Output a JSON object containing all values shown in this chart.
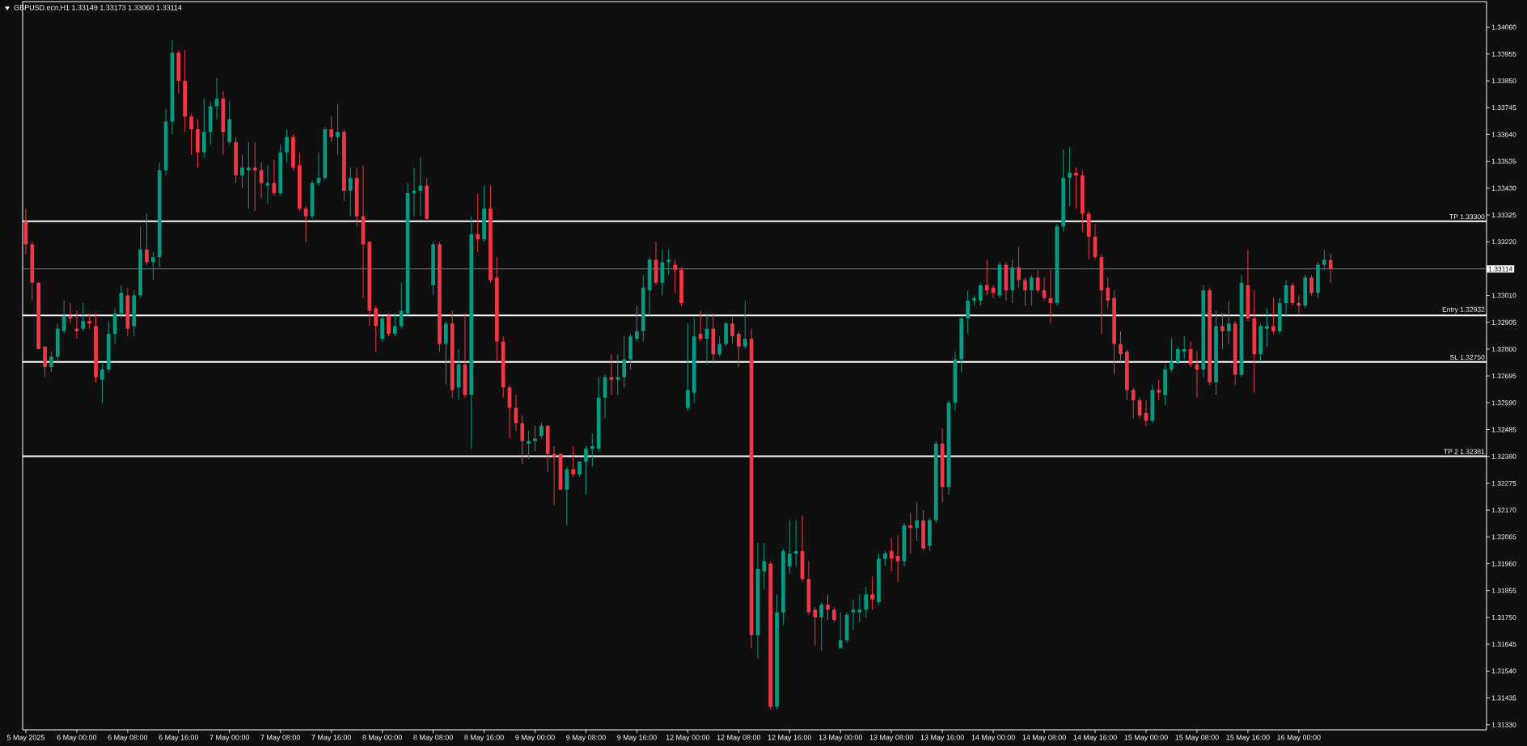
{
  "chart_data": {
    "type": "candlestick",
    "title": "GBPUSD.ecn,H1 1.33149 1.33173 1.33060 1.33114",
    "categories": [
      "5 May 2025",
      null,
      null,
      null,
      null,
      null,
      null,
      null,
      "6 May 00:00",
      null,
      null,
      null,
      null,
      null,
      null,
      null,
      "6 May 08:00",
      null,
      null,
      null,
      null,
      null,
      null,
      null,
      "6 May 16:00",
      null,
      null,
      null,
      null,
      null,
      null,
      null,
      "7 May 00:00",
      null,
      null,
      null,
      null,
      null,
      null,
      null,
      "7 May 08:00",
      null,
      null,
      null,
      null,
      null,
      null,
      null,
      "7 May 16:00",
      null,
      null,
      null,
      null,
      null,
      null,
      null,
      "8 May 00:00",
      null,
      null,
      null,
      null,
      null,
      null,
      null,
      "8 May 08:00",
      null,
      null,
      null,
      null,
      null,
      null,
      null,
      "8 May 16:00",
      null,
      null,
      null,
      null,
      null,
      null,
      null,
      "9 May 00:00",
      null,
      null,
      null,
      null,
      null,
      null,
      null,
      "9 May 08:00",
      null,
      null,
      null,
      null,
      null,
      null,
      null,
      "9 May 16:00",
      null,
      null,
      null,
      null,
      null,
      null,
      null,
      "12 May 00:00",
      null,
      null,
      null,
      null,
      null,
      null,
      null,
      "12 May 08:00",
      null,
      null,
      null,
      null,
      null,
      null,
      null,
      "12 May 16:00",
      null,
      null,
      null,
      null,
      null,
      null,
      null,
      "13 May 00:00",
      null,
      null,
      null,
      null,
      null,
      null,
      null,
      "13 May 08:00",
      null,
      null,
      null,
      null,
      null,
      null,
      null,
      "13 May 16:00",
      null,
      null,
      null,
      null,
      null,
      null,
      null,
      "14 May 00:00",
      null,
      null,
      null,
      null,
      null,
      null,
      null,
      "14 May 08:00",
      null,
      null,
      null,
      null,
      null,
      null,
      null,
      "14 May 16:00",
      null,
      null,
      null,
      null,
      null,
      null,
      null,
      "15 May 00:00",
      null,
      null,
      null,
      null,
      null,
      null,
      null,
      "15 May 08:00",
      null,
      null,
      null,
      null,
      null,
      null,
      null,
      "15 May 16:00",
      null,
      null,
      null,
      null,
      null,
      null,
      null,
      "16 May 00:00",
      null,
      null,
      null,
      null,
      null,
      null,
      null,
      null,
      null,
      null,
      null,
      null,
      null,
      null,
      null,
      null,
      null,
      null,
      null,
      null,
      null,
      null,
      null,
      null,
      null,
      null,
      null,
      null,
      null
    ],
    "ohlc": [
      [
        1.333,
        1.3335,
        1.3317,
        1.3321
      ],
      [
        1.3321,
        1.3322,
        1.3299,
        1.3306
      ],
      [
        1.3306,
        1.3306,
        1.328,
        1.328
      ],
      [
        1.3281,
        1.3281,
        1.3269,
        1.3273
      ],
      [
        1.3273,
        1.3279,
        1.3271,
        1.3277
      ],
      [
        1.3277,
        1.329,
        1.3275,
        1.3288
      ],
      [
        1.3287,
        1.3299,
        1.3286,
        1.3293
      ],
      [
        1.3293,
        1.3298,
        1.329,
        1.3292
      ],
      [
        1.3288,
        1.3295,
        1.3284,
        1.3287
      ],
      [
        1.3288,
        1.3298,
        1.3287,
        1.3291
      ],
      [
        1.3291,
        1.3294,
        1.3288,
        1.329
      ],
      [
        1.3289,
        1.3294,
        1.3267,
        1.3269
      ],
      [
        1.3268,
        1.3275,
        1.3259,
        1.3272
      ],
      [
        1.3272,
        1.3291,
        1.3271,
        1.3286
      ],
      [
        1.3286,
        1.3296,
        1.3282,
        1.3294
      ],
      [
        1.3294,
        1.3305,
        1.3292,
        1.3302
      ],
      [
        1.3301,
        1.3304,
        1.3285,
        1.3288
      ],
      [
        1.3289,
        1.3303,
        1.3285,
        1.3301
      ],
      [
        1.3301,
        1.3328,
        1.33,
        1.3319
      ],
      [
        1.3319,
        1.3333,
        1.3313,
        1.3314
      ],
      [
        1.3314,
        1.3318,
        1.3307,
        1.3316
      ],
      [
        1.3316,
        1.3353,
        1.3312,
        1.335
      ],
      [
        1.335,
        1.3374,
        1.3348,
        1.3369
      ],
      [
        1.3369,
        1.3401,
        1.3364,
        1.3396
      ],
      [
        1.3396,
        1.3397,
        1.338,
        1.3385
      ],
      [
        1.3385,
        1.3397,
        1.3365,
        1.3371
      ],
      [
        1.3371,
        1.3372,
        1.3356,
        1.3366
      ],
      [
        1.3366,
        1.337,
        1.3351,
        1.3357
      ],
      [
        1.3357,
        1.3378,
        1.3355,
        1.3365
      ],
      [
        1.3365,
        1.3377,
        1.336,
        1.3375
      ],
      [
        1.3375,
        1.3386,
        1.337,
        1.3378
      ],
      [
        1.3378,
        1.3381,
        1.3356,
        1.3365
      ],
      [
        1.3361,
        1.3377,
        1.336,
        1.337
      ],
      [
        1.3361,
        1.3363,
        1.3345,
        1.3348
      ],
      [
        1.3348,
        1.3356,
        1.3343,
        1.3351
      ],
      [
        1.335,
        1.3361,
        1.3335,
        1.3351
      ],
      [
        1.3351,
        1.3361,
        1.3334,
        1.335
      ],
      [
        1.335,
        1.3353,
        1.3339,
        1.3345
      ],
      [
        1.3344,
        1.3352,
        1.3337,
        1.3345
      ],
      [
        1.3345,
        1.3354,
        1.334,
        1.3341
      ],
      [
        1.3341,
        1.336,
        1.334,
        1.3357
      ],
      [
        1.3357,
        1.3366,
        1.3353,
        1.3363
      ],
      [
        1.3363,
        1.3364,
        1.335,
        1.3351
      ],
      [
        1.3352,
        1.3357,
        1.3334,
        1.3335
      ],
      [
        1.3335,
        1.3336,
        1.3322,
        1.3332
      ],
      [
        1.3332,
        1.3346,
        1.3331,
        1.3345
      ],
      [
        1.3345,
        1.3357,
        1.3344,
        1.3347
      ],
      [
        1.3347,
        1.3367,
        1.3346,
        1.3366
      ],
      [
        1.3366,
        1.3371,
        1.3361,
        1.3363
      ],
      [
        1.3363,
        1.3376,
        1.3356,
        1.3365
      ],
      [
        1.3365,
        1.3366,
        1.3338,
        1.3342
      ],
      [
        1.3342,
        1.3351,
        1.3332,
        1.3347
      ],
      [
        1.3347,
        1.3351,
        1.3328,
        1.3332
      ],
      [
        1.3332,
        1.3352,
        1.33,
        1.3321
      ],
      [
        1.3322,
        1.3322,
        1.3289,
        1.3295
      ],
      [
        1.3296,
        1.3297,
        1.3279,
        1.3289
      ],
      [
        1.3284,
        1.3293,
        1.3283,
        1.3292
      ],
      [
        1.3293,
        1.3294,
        1.3285,
        1.3286
      ],
      [
        1.3286,
        1.3294,
        1.3285,
        1.3289
      ],
      [
        1.3289,
        1.3306,
        1.3288,
        1.3295
      ],
      [
        1.3294,
        1.3345,
        1.3293,
        1.3341
      ],
      [
        1.3341,
        1.3351,
        1.3332,
        1.3342
      ],
      [
        1.3342,
        1.3355,
        1.3332,
        1.3344
      ],
      [
        1.3344,
        1.3347,
        1.333,
        1.3331
      ],
      [
        1.3305,
        1.3322,
        1.3301,
        1.3321
      ],
      [
        1.3321,
        1.3322,
        1.3279,
        1.3282
      ],
      [
        1.3282,
        1.3291,
        1.3266,
        1.329
      ],
      [
        1.329,
        1.3295,
        1.3261,
        1.3264
      ],
      [
        1.3265,
        1.328,
        1.326,
        1.3274
      ],
      [
        1.3274,
        1.3294,
        1.3261,
        1.3262
      ],
      [
        1.3262,
        1.3332,
        1.3241,
        1.3325
      ],
      [
        1.3325,
        1.3341,
        1.3318,
        1.3323
      ],
      [
        1.3323,
        1.3344,
        1.3322,
        1.3335
      ],
      [
        1.3335,
        1.3344,
        1.3306,
        1.3307
      ],
      [
        1.3308,
        1.3316,
        1.3275,
        1.3283
      ],
      [
        1.3283,
        1.3285,
        1.3261,
        1.3265
      ],
      [
        1.3265,
        1.3266,
        1.3245,
        1.3257
      ],
      [
        1.3257,
        1.3262,
        1.3248,
        1.3251
      ],
      [
        1.3251,
        1.3254,
        1.3235,
        1.3244
      ],
      [
        1.3243,
        1.3248,
        1.3237,
        1.3244
      ],
      [
        1.3244,
        1.325,
        1.324,
        1.3245
      ],
      [
        1.3246,
        1.3251,
        1.3245,
        1.325
      ],
      [
        1.325,
        1.325,
        1.3232,
        1.3239
      ],
      [
        1.3239,
        1.3242,
        1.3219,
        1.3238
      ],
      [
        1.3239,
        1.3239,
        1.3225,
        1.3225
      ],
      [
        1.3225,
        1.3234,
        1.3211,
        1.3233
      ],
      [
        1.3233,
        1.3242,
        1.323,
        1.3231
      ],
      [
        1.3231,
        1.3236,
        1.323,
        1.3236
      ],
      [
        1.3236,
        1.3242,
        1.3223,
        1.3241
      ],
      [
        1.3241,
        1.3247,
        1.3234,
        1.3242
      ],
      [
        1.3241,
        1.3269,
        1.324,
        1.3261
      ],
      [
        1.3261,
        1.327,
        1.3253,
        1.3269
      ],
      [
        1.3269,
        1.3278,
        1.3262,
        1.3268
      ],
      [
        1.3268,
        1.3278,
        1.3262,
        1.3269
      ],
      [
        1.3269,
        1.3285,
        1.3265,
        1.3276
      ],
      [
        1.3276,
        1.3286,
        1.3272,
        1.3285
      ],
      [
        1.3284,
        1.3297,
        1.3283,
        1.3287
      ],
      [
        1.3287,
        1.3309,
        1.3283,
        1.3304
      ],
      [
        1.3303,
        1.3316,
        1.3293,
        1.3315
      ],
      [
        1.3315,
        1.3322,
        1.3305,
        1.3306
      ],
      [
        1.3306,
        1.3319,
        1.3301,
        1.3314
      ],
      [
        1.3314,
        1.3319,
        1.3309,
        1.3315
      ],
      [
        1.3313,
        1.3315,
        1.3302,
        1.3311
      ],
      [
        1.3311,
        1.3312,
        1.3297,
        1.3298
      ],
      [
        1.3257,
        1.329,
        1.3256,
        1.3264
      ],
      [
        1.3263,
        1.3292,
        1.3259,
        1.3285
      ],
      [
        1.3286,
        1.3295,
        1.3283,
        1.3284
      ],
      [
        1.3284,
        1.3294,
        1.3274,
        1.3288
      ],
      [
        1.3288,
        1.3294,
        1.3275,
        1.3278
      ],
      [
        1.3278,
        1.3285,
        1.3277,
        1.3282
      ],
      [
        1.3282,
        1.3291,
        1.3281,
        1.329
      ],
      [
        1.329,
        1.3293,
        1.3282,
        1.3285
      ],
      [
        1.3286,
        1.3287,
        1.3273,
        1.3281
      ],
      [
        1.3281,
        1.3299,
        1.328,
        1.3284
      ],
      [
        1.3284,
        1.3288,
        1.3163,
        1.3168
      ],
      [
        1.3168,
        1.3204,
        1.3159,
        1.3194
      ],
      [
        1.3193,
        1.3204,
        1.3186,
        1.3197
      ],
      [
        1.3196,
        1.3197,
        1.3139,
        1.314
      ],
      [
        1.314,
        1.3184,
        1.3139,
        1.3177
      ],
      [
        1.3177,
        1.3202,
        1.3172,
        1.3201
      ],
      [
        1.3195,
        1.3213,
        1.3192,
        1.32
      ],
      [
        1.32,
        1.3213,
        1.3195,
        1.3201
      ],
      [
        1.3201,
        1.3215,
        1.3189,
        1.319
      ],
      [
        1.319,
        1.3197,
        1.3176,
        1.3177
      ],
      [
        1.3178,
        1.3179,
        1.3164,
        1.3175
      ],
      [
        1.3175,
        1.3181,
        1.3162,
        1.318
      ],
      [
        1.318,
        1.3184,
        1.3174,
        1.3178
      ],
      [
        1.3178,
        1.3179,
        1.3173,
        1.3174
      ],
      [
        1.3163,
        1.3177,
        1.3163,
        1.3166
      ],
      [
        1.3166,
        1.3177,
        1.3165,
        1.3176
      ],
      [
        1.3177,
        1.3182,
        1.317,
        1.3178
      ],
      [
        1.3177,
        1.3184,
        1.3173,
        1.3178
      ],
      [
        1.3178,
        1.3187,
        1.3175,
        1.3184
      ],
      [
        1.3184,
        1.3191,
        1.3178,
        1.3182
      ],
      [
        1.3181,
        1.32,
        1.318,
        1.3198
      ],
      [
        1.3198,
        1.3201,
        1.3195,
        1.32
      ],
      [
        1.3201,
        1.3206,
        1.3193,
        1.3198
      ],
      [
        1.3199,
        1.3207,
        1.3189,
        1.3197
      ],
      [
        1.3197,
        1.3212,
        1.3195,
        1.3211
      ],
      [
        1.3211,
        1.3216,
        1.32,
        1.321
      ],
      [
        1.321,
        1.322,
        1.3205,
        1.3213
      ],
      [
        1.3213,
        1.3217,
        1.3201,
        1.3202
      ],
      [
        1.3203,
        1.3214,
        1.3201,
        1.3213
      ],
      [
        1.3213,
        1.3244,
        1.3212,
        1.3243
      ],
      [
        1.3243,
        1.3249,
        1.322,
        1.3226
      ],
      [
        1.3226,
        1.326,
        1.3223,
        1.3259
      ],
      [
        1.3259,
        1.3279,
        1.3256,
        1.3276
      ],
      [
        1.3276,
        1.3293,
        1.3271,
        1.3292
      ],
      [
        1.3292,
        1.3303,
        1.3286,
        1.3299
      ],
      [
        1.3299,
        1.3301,
        1.3297,
        1.33
      ],
      [
        1.3299,
        1.3306,
        1.3297,
        1.3305
      ],
      [
        1.3305,
        1.3315,
        1.3301,
        1.3303
      ],
      [
        1.3304,
        1.3305,
        1.33,
        1.3302
      ],
      [
        1.3301,
        1.3314,
        1.33,
        1.3313
      ],
      [
        1.3313,
        1.3314,
        1.3299,
        1.3303
      ],
      [
        1.3303,
        1.3315,
        1.3298,
        1.3312
      ],
      [
        1.3312,
        1.332,
        1.3304,
        1.3307
      ],
      [
        1.3307,
        1.3308,
        1.3297,
        1.3303
      ],
      [
        1.3303,
        1.3309,
        1.3297,
        1.3308
      ],
      [
        1.3308,
        1.3311,
        1.3302,
        1.3303
      ],
      [
        1.3303,
        1.3308,
        1.3299,
        1.33
      ],
      [
        1.33,
        1.3311,
        1.329,
        1.3298
      ],
      [
        1.3298,
        1.3329,
        1.3297,
        1.3328
      ],
      [
        1.3328,
        1.3358,
        1.3326,
        1.3347
      ],
      [
        1.3347,
        1.3359,
        1.3336,
        1.3349
      ],
      [
        1.3349,
        1.3351,
        1.3335,
        1.3348
      ],
      [
        1.3348,
        1.335,
        1.3326,
        1.3333
      ],
      [
        1.3333,
        1.3334,
        1.3315,
        1.3324
      ],
      [
        1.3324,
        1.3329,
        1.3315,
        1.3316
      ],
      [
        1.3316,
        1.3317,
        1.3286,
        1.3303
      ],
      [
        1.3304,
        1.3308,
        1.3296,
        1.3299
      ],
      [
        1.33,
        1.3303,
        1.327,
        1.3282
      ],
      [
        1.3282,
        1.3287,
        1.3275,
        1.3278
      ],
      [
        1.3279,
        1.328,
        1.326,
        1.3264
      ],
      [
        1.3264,
        1.3265,
        1.3253,
        1.326
      ],
      [
        1.326,
        1.3261,
        1.3253,
        1.3254
      ],
      [
        1.3255,
        1.326,
        1.325,
        1.3252
      ],
      [
        1.3252,
        1.3266,
        1.3251,
        1.3264
      ],
      [
        1.3264,
        1.3268,
        1.326,
        1.3263
      ],
      [
        1.3262,
        1.3274,
        1.3258,
        1.3272
      ],
      [
        1.3272,
        1.3284,
        1.3271,
        1.3275
      ],
      [
        1.3275,
        1.3281,
        1.3274,
        1.328
      ],
      [
        1.3279,
        1.3285,
        1.3276,
        1.328
      ],
      [
        1.328,
        1.3283,
        1.3273,
        1.3274
      ],
      [
        1.3274,
        1.3279,
        1.3261,
        1.3272
      ],
      [
        1.3272,
        1.3305,
        1.3269,
        1.3303
      ],
      [
        1.3303,
        1.3304,
        1.3266,
        1.3267
      ],
      [
        1.3267,
        1.3295,
        1.3262,
        1.3289
      ],
      [
        1.3289,
        1.3294,
        1.328,
        1.3287
      ],
      [
        1.3287,
        1.3299,
        1.3282,
        1.329
      ],
      [
        1.329,
        1.3291,
        1.3266,
        1.327
      ],
      [
        1.327,
        1.3309,
        1.3269,
        1.3306
      ],
      [
        1.3305,
        1.3319,
        1.3291,
        1.3292
      ],
      [
        1.3292,
        1.3303,
        1.3263,
        1.3278
      ],
      [
        1.3278,
        1.329,
        1.3275,
        1.3289
      ],
      [
        1.3288,
        1.3296,
        1.3281,
        1.3289
      ],
      [
        1.3289,
        1.33,
        1.3286,
        1.3287
      ],
      [
        1.3287,
        1.33,
        1.3286,
        1.3298
      ],
      [
        1.3298,
        1.3307,
        1.3293,
        1.3305
      ],
      [
        1.3305,
        1.3306,
        1.3297,
        1.3298
      ],
      [
        1.3298,
        1.3301,
        1.3294,
        1.3297
      ],
      [
        1.3297,
        1.3309,
        1.3296,
        1.3308
      ],
      [
        1.3308,
        1.3309,
        1.3301,
        1.3302
      ],
      [
        1.3302,
        1.3314,
        1.33,
        1.3313
      ],
      [
        1.3313,
        1.3319,
        1.3311,
        1.3315
      ],
      [
        1.33149,
        1.33173,
        1.3306,
        1.33114
      ],
      null,
      null,
      null,
      null,
      null,
      null,
      null,
      null,
      null,
      null,
      null,
      null,
      null,
      null,
      null,
      null,
      null,
      null,
      null,
      null,
      null,
      null,
      null,
      null
    ],
    "colors": [
      "#f23645",
      "#f23645",
      "#f23645",
      "#f23645",
      "#089981",
      "#089981",
      "#089981",
      "#f23645",
      "#f23645",
      "#089981",
      "#f23645",
      "#f23645",
      "#089981",
      "#089981",
      "#089981",
      "#089981",
      "#f23645",
      "#089981",
      "#089981",
      "#f23645",
      "#089981",
      "#089981",
      "#089981",
      "#089981",
      "#f23645",
      "#f23645",
      "#f23645",
      "#f23645",
      "#089981",
      "#089981",
      "#089981",
      "#f23645",
      "#089981",
      "#f23645",
      "#089981",
      "#089981",
      "#f23645",
      "#f23645",
      "#089981",
      "#f23645",
      "#089981",
      "#089981",
      "#f23645",
      "#f23645",
      "#f23645",
      "#089981",
      "#089981",
      "#089981",
      "#f23645",
      "#089981",
      "#f23645",
      "#089981",
      "#f23645",
      "#f23645",
      "#f23645",
      "#f23645",
      "#089981",
      "#f23645",
      "#089981",
      "#089981",
      "#089981",
      "#089981",
      "#089981",
      "#f23645",
      "#089981",
      "#f23645",
      "#089981",
      "#f23645",
      "#089981",
      "#f23645",
      "#089981",
      "#f23645",
      "#089981",
      "#f23645",
      "#f23645",
      "#f23645",
      "#f23645",
      "#f23645",
      "#f23645",
      "#089981",
      "#089981",
      "#089981",
      "#f23645",
      "#f23645",
      "#f23645",
      "#089981",
      "#f23645",
      "#089981",
      "#089981",
      "#089981",
      "#089981",
      "#089981",
      "#f23645",
      "#089981",
      "#089981",
      "#089981",
      "#089981",
      "#089981",
      "#089981",
      "#f23645",
      "#089981",
      "#089981",
      "#f23645",
      "#f23645",
      "#089981",
      "#089981",
      "#f23645",
      "#089981",
      "#f23645",
      "#089981",
      "#089981",
      "#f23645",
      "#f23645",
      "#089981",
      "#f23645",
      "#089981",
      "#089981",
      "#f23645",
      "#089981",
      "#089981",
      "#089981",
      "#089981",
      "#f23645",
      "#f23645",
      "#f23645",
      "#089981",
      "#f23645",
      "#f23645",
      "#089981",
      "#089981",
      "#089981",
      "#089981",
      "#089981",
      "#f23645",
      "#089981",
      "#089981",
      "#f23645",
      "#f23645",
      "#089981",
      "#f23645",
      "#089981",
      "#f23645",
      "#089981",
      "#089981",
      "#f23645",
      "#089981",
      "#089981",
      "#089981",
      "#089981",
      "#089981",
      "#089981",
      "#f23645",
      "#f23645",
      "#089981",
      "#f23645",
      "#089981",
      "#f23645",
      "#f23645",
      "#089981",
      "#f23645",
      "#f23645",
      "#f23645",
      "#089981",
      "#089981",
      "#089981",
      "#f23645",
      "#f23645",
      "#f23645",
      "#f23645",
      "#f23645",
      "#f23645",
      "#f23645",
      "#f23645",
      "#f23645",
      "#f23645",
      "#f23645",
      "#f23645",
      "#089981",
      "#f23645",
      "#089981",
      "#089981",
      "#089981",
      "#089981",
      "#f23645",
      "#f23645",
      "#089981",
      "#f23645",
      "#089981",
      "#f23645",
      "#089981",
      "#f23645",
      "#089981",
      "#f23645",
      "#f23645",
      "#089981",
      "#089981",
      "#f23645",
      "#089981",
      "#089981",
      "#f23645",
      "#f23645",
      "#089981",
      "#f23645",
      "#089981",
      "#089981",
      "#f23645",
      null,
      null,
      null,
      null,
      null,
      null,
      null,
      null,
      null,
      null,
      null,
      null,
      null,
      null,
      null,
      null,
      null,
      null,
      null,
      null,
      null,
      null,
      null,
      null
    ],
    "ylim": [
      1.3131,
      1.3416
    ],
    "yticks": [
      {
        "value": 1.3133,
        "label": "1.31330"
      },
      {
        "value": 1.31435,
        "label": "1.31435"
      },
      {
        "value": 1.3154,
        "label": "1.31540"
      },
      {
        "value": 1.31645,
        "label": "1.31645"
      },
      {
        "value": 1.3175,
        "label": "1.31750"
      },
      {
        "value": 1.31855,
        "label": "1.31855"
      },
      {
        "value": 1.3196,
        "label": "1.31960"
      },
      {
        "value": 1.32065,
        "label": "1.32065"
      },
      {
        "value": 1.3217,
        "label": "1.32170"
      },
      {
        "value": 1.32275,
        "label": "1.32275"
      },
      {
        "value": 1.3238,
        "label": "1.32380"
      },
      {
        "value": 1.32485,
        "label": "1.32485"
      },
      {
        "value": 1.3259,
        "label": "1.32590"
      },
      {
        "value": 1.32695,
        "label": "1.32695"
      },
      {
        "value": 1.328,
        "label": "1.32800"
      },
      {
        "value": 1.32905,
        "label": "1.32905"
      },
      {
        "value": 1.3301,
        "label": "1.33010"
      },
      {
        "value": 1.3322,
        "label": "1.33220"
      },
      {
        "value": 1.33325,
        "label": "1.33325"
      },
      {
        "value": 1.3343,
        "label": "1.33430"
      },
      {
        "value": 1.33535,
        "label": "1.33535"
      },
      {
        "value": 1.3364,
        "label": "1.33640"
      },
      {
        "value": 1.33745,
        "label": "1.33745"
      },
      {
        "value": 1.3385,
        "label": "1.33850"
      },
      {
        "value": 1.33955,
        "label": "1.33955"
      },
      {
        "value": 1.3406,
        "label": "1.34060"
      }
    ],
    "ref_lines": [
      {
        "axis": "y",
        "value": 1.333,
        "label": "TP 1.33300",
        "color": "#ffffff"
      },
      {
        "axis": "y",
        "value": 1.32932,
        "label": "Entry 1.32932",
        "color": "#ffffff"
      },
      {
        "axis": "y",
        "value": 1.3275,
        "label": "SL 1.32750",
        "color": "#ffffff"
      },
      {
        "axis": "y",
        "value": 1.32381,
        "label": "TP 2 1.32381",
        "color": "#ffffff"
      },
      {
        "axis": "y",
        "value": 1.33114,
        "label": "1.33114",
        "color": "#8596a3"
      }
    ]
  }
}
